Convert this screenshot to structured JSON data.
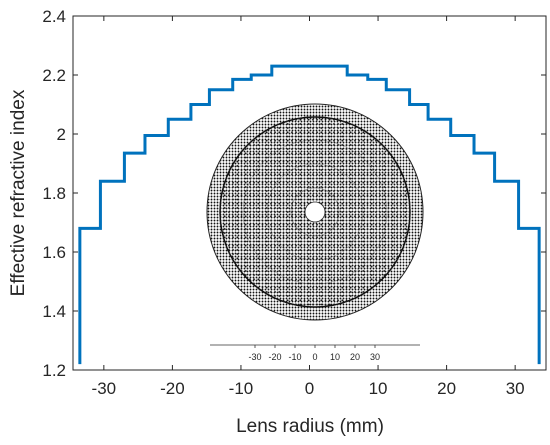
{
  "chart_data": {
    "type": "line",
    "xlabel": "Lens radius (mm)",
    "ylabel": "Effective refractive index",
    "xlim": [
      -34.5,
      34.5
    ],
    "ylim": [
      1.2,
      2.4
    ],
    "x_ticks": [
      -30,
      -20,
      -10,
      0,
      10,
      20,
      30
    ],
    "y_ticks": [
      1.2,
      1.4,
      1.6,
      1.8,
      2.0,
      2.2,
      2.4
    ],
    "x_tick_labels": [
      "-30",
      "-20",
      "-10",
      "0",
      "10",
      "20",
      "30"
    ],
    "y_tick_labels": [
      "1.2",
      "1.4",
      "1.6",
      "1.8",
      "2",
      "2.2",
      "2.4"
    ],
    "grid": false,
    "series": [
      {
        "color": "#0072BD",
        "step_edges": [
          -33.5,
          -30.5,
          -27,
          -24,
          -20.6,
          -17.3,
          -14.6,
          -11.2,
          -8.5,
          -5.5,
          5.5,
          8.5,
          11.2,
          14.6,
          17.3,
          20.6,
          24,
          27,
          30.5,
          33.5
        ],
        "step_values": [
          1.68,
          1.84,
          1.935,
          1.995,
          2.05,
          2.1,
          2.15,
          2.185,
          2.2,
          2.23,
          2.2,
          2.185,
          2.15,
          2.1,
          2.05,
          1.995,
          1.935,
          1.84,
          1.68
        ],
        "drop_to": 1.22
      }
    ],
    "inset": {
      "description_axis_ticks": [
        -30,
        -20,
        -10,
        0,
        10,
        20,
        30
      ],
      "tick_labels": [
        "-30",
        "-20",
        "-10",
        "0",
        "10",
        "20",
        "30"
      ]
    }
  }
}
